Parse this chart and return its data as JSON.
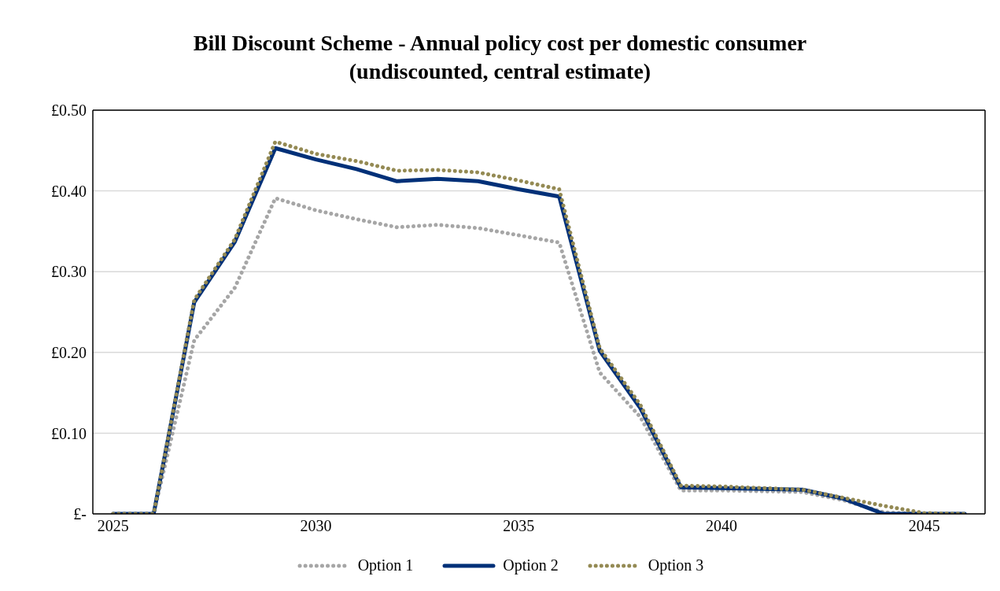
{
  "chart_data": {
    "type": "line",
    "title": "Bill Discount Scheme - Annual policy cost per domestic consumer\n(undiscounted, central estimate)",
    "x": [
      2025,
      2026,
      2027,
      2028,
      2029,
      2030,
      2031,
      2032,
      2033,
      2034,
      2035,
      2036,
      2037,
      2038,
      2039,
      2040,
      2041,
      2042,
      2043,
      2044,
      2045,
      2046
    ],
    "series": [
      {
        "name": "Option 1",
        "color": "#a6a6a6",
        "line_style": "dotted",
        "values": [
          0,
          0,
          0.215,
          0.28,
          0.391,
          0.376,
          0.365,
          0.355,
          0.358,
          0.354,
          0.345,
          0.336,
          0.175,
          0.12,
          0.029,
          0.029,
          0.028,
          0.027,
          0.017,
          0.002,
          0,
          0
        ]
      },
      {
        "name": "Option 2",
        "color": "#003078",
        "line_style": "solid",
        "values": [
          0,
          0,
          0.262,
          0.337,
          0.453,
          0.439,
          0.427,
          0.412,
          0.415,
          0.412,
          0.402,
          0.393,
          0.202,
          0.131,
          0.033,
          0.032,
          0.031,
          0.03,
          0.019,
          0,
          0,
          0
        ]
      },
      {
        "name": "Option 3",
        "color": "#948a54",
        "line_style": "dotted",
        "values": [
          0,
          0,
          0.265,
          0.34,
          0.461,
          0.446,
          0.437,
          0.425,
          0.426,
          0.423,
          0.413,
          0.402,
          0.205,
          0.135,
          0.035,
          0.034,
          0.032,
          0.03,
          0.02,
          0.01,
          0.001,
          0
        ]
      }
    ],
    "xlim": [
      2024.5,
      2046.5
    ],
    "xticks": [
      2025,
      2030,
      2035,
      2040,
      2045
    ],
    "ylim": [
      0,
      0.5
    ],
    "yticks": [
      {
        "value": 0,
        "label": "£-"
      },
      {
        "value": 0.1,
        "label": "£0.10"
      },
      {
        "value": 0.2,
        "label": "£0.20"
      },
      {
        "value": 0.3,
        "label": "£0.30"
      },
      {
        "value": 0.4,
        "label": "£0.40"
      },
      {
        "value": 0.5,
        "label": "£0.50"
      }
    ],
    "grid": "y",
    "legend": "bottom",
    "marker": "none"
  }
}
